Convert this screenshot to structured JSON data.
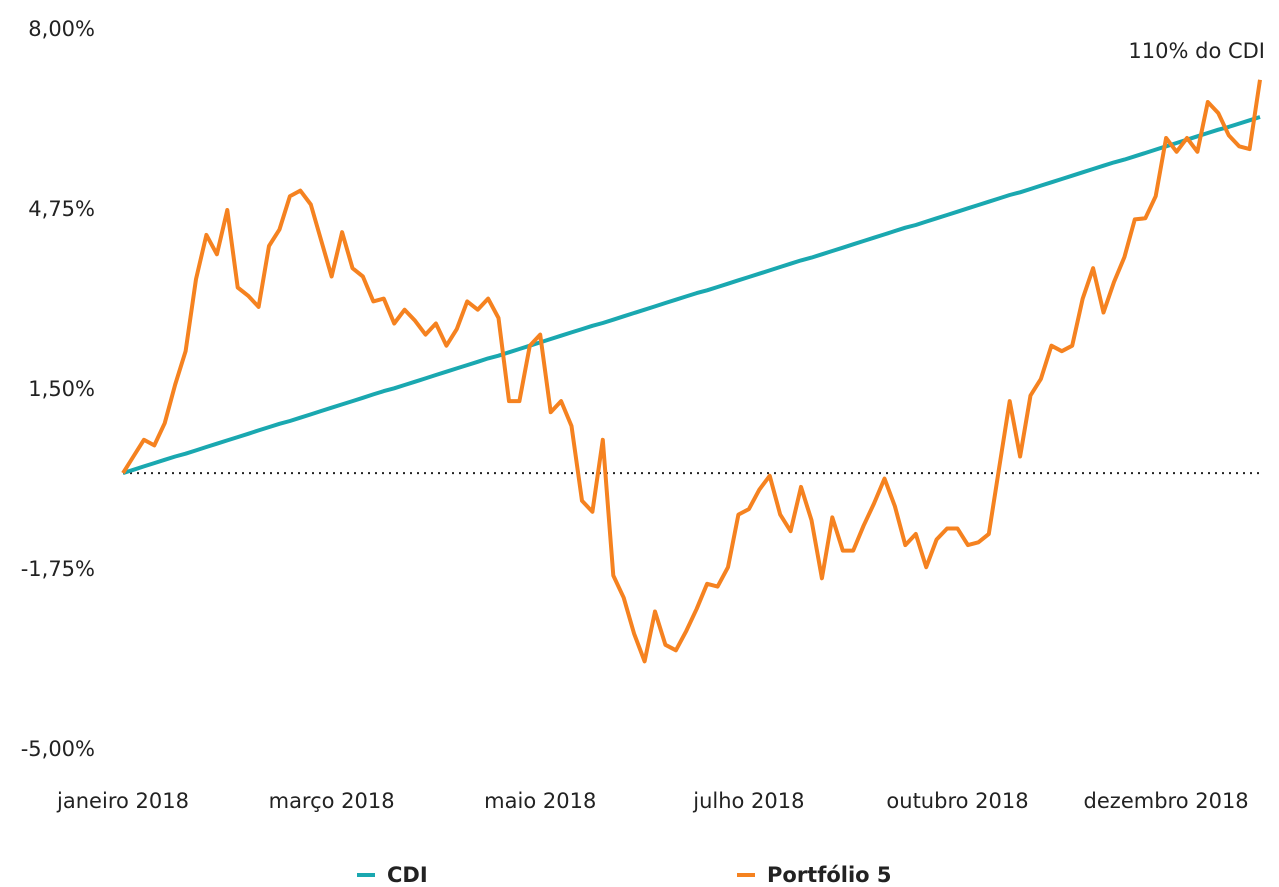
{
  "chart_data": {
    "type": "line",
    "annotations": [
      "110% do CDI"
    ],
    "xlim": [
      0,
      109
    ],
    "xticks": [
      {
        "value": 0,
        "label": "janeiro 2018"
      },
      {
        "value": 20,
        "label": "março 2018"
      },
      {
        "value": 40,
        "label": "maio 2018"
      },
      {
        "value": 60,
        "label": "julho 2018"
      },
      {
        "value": 80,
        "label": "outubro 2018"
      },
      {
        "value": 100,
        "label": "dezembro 2018"
      }
    ],
    "ylim": [
      -5,
      8
    ],
    "yticks": [
      {
        "value": 8,
        "label": "8,00%"
      },
      {
        "value": 4.75,
        "label": "4,75%"
      },
      {
        "value": 1.5,
        "label": "1,50%"
      },
      {
        "value": -1.75,
        "label": "-1,75%"
      },
      {
        "value": -5,
        "label": "-5,00%"
      }
    ],
    "grid": false,
    "legend": "bottom",
    "series": [
      {
        "name": "CDI",
        "color": "#1aa8b0",
        "values": [
          0,
          0.06,
          0.12,
          0.18,
          0.24,
          0.3,
          0.35,
          0.41,
          0.47,
          0.53,
          0.59,
          0.65,
          0.71,
          0.77,
          0.83,
          0.89,
          0.94,
          1.0,
          1.06,
          1.12,
          1.18,
          1.24,
          1.3,
          1.36,
          1.42,
          1.48,
          1.53,
          1.59,
          1.65,
          1.71,
          1.77,
          1.83,
          1.89,
          1.95,
          2.01,
          2.07,
          2.12,
          2.18,
          2.24,
          2.3,
          2.36,
          2.42,
          2.48,
          2.54,
          2.6,
          2.66,
          2.71,
          2.77,
          2.83,
          2.89,
          2.95,
          3.01,
          3.07,
          3.13,
          3.19,
          3.25,
          3.3,
          3.36,
          3.42,
          3.48,
          3.54,
          3.6,
          3.66,
          3.72,
          3.78,
          3.84,
          3.89,
          3.95,
          4.01,
          4.07,
          4.13,
          4.19,
          4.25,
          4.31,
          4.37,
          4.43,
          4.48,
          4.54,
          4.6,
          4.66,
          4.72,
          4.78,
          4.84,
          4.9,
          4.96,
          5.02,
          5.07,
          5.13,
          5.19,
          5.25,
          5.31,
          5.37,
          5.43,
          5.49,
          5.55,
          5.61,
          5.66,
          5.72,
          5.78,
          5.84,
          5.9,
          5.96,
          6.02,
          6.08,
          6.14,
          6.2,
          6.25,
          6.31,
          6.37,
          6.43
        ]
      },
      {
        "name": "Portfólio 5",
        "color": "#f58220",
        "values": [
          0,
          0.3,
          0.6,
          0.5,
          0.9,
          1.6,
          2.2,
          3.5,
          4.3,
          3.95,
          4.75,
          3.35,
          3.2,
          3.0,
          4.1,
          4.4,
          5.0,
          5.1,
          4.85,
          4.2,
          3.55,
          4.35,
          3.7,
          3.55,
          3.1,
          3.15,
          2.7,
          2.95,
          2.75,
          2.5,
          2.7,
          2.3,
          2.6,
          3.1,
          2.95,
          3.15,
          2.8,
          1.3,
          1.3,
          2.3,
          2.5,
          1.1,
          1.3,
          0.85,
          -0.5,
          -0.7,
          0.6,
          -1.85,
          -2.25,
          -2.9,
          -3.4,
          -2.5,
          -3.1,
          -3.2,
          -2.85,
          -2.45,
          -2.0,
          -2.05,
          -1.7,
          -0.75,
          -0.65,
          -0.3,
          -0.05,
          -0.75,
          -1.05,
          -0.25,
          -0.85,
          -1.9,
          -0.8,
          -1.4,
          -1.4,
          -0.95,
          -0.55,
          -0.1,
          -0.6,
          -1.3,
          -1.1,
          -1.7,
          -1.2,
          -1.0,
          -1.0,
          -1.3,
          -1.25,
          -1.1,
          0.1,
          1.3,
          0.3,
          1.4,
          1.7,
          2.3,
          2.2,
          2.3,
          3.15,
          3.7,
          2.9,
          3.45,
          3.9,
          4.58,
          4.6,
          5.0,
          6.05,
          5.8,
          6.05,
          5.8,
          6.7,
          6.5,
          6.1,
          5.9,
          5.85,
          7.1
        ]
      }
    ]
  }
}
